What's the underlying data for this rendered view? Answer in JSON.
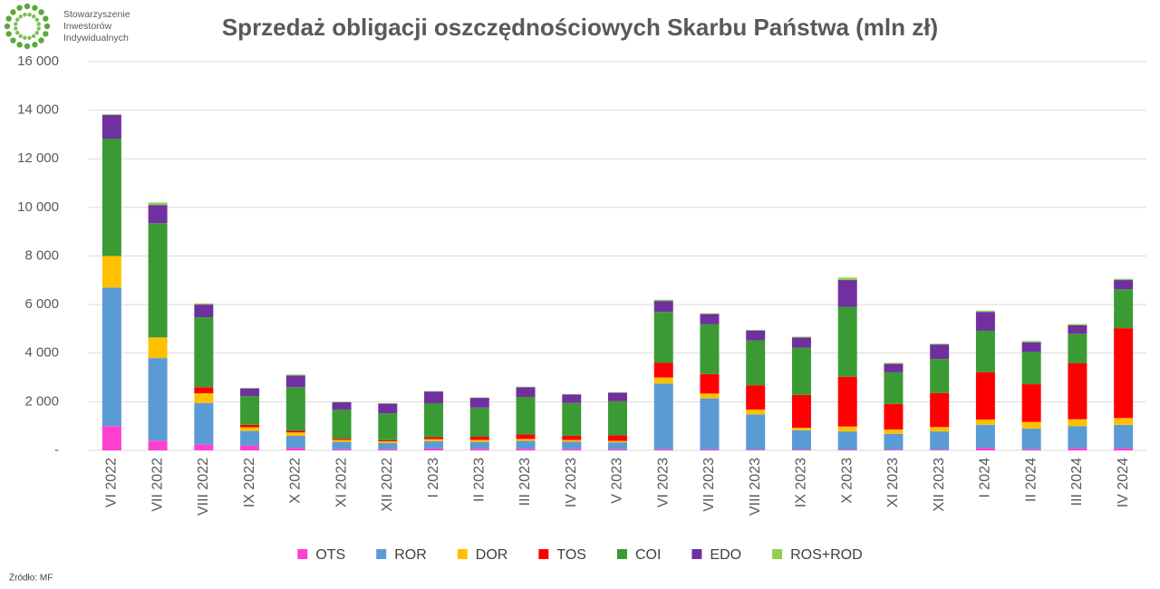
{
  "chart_data": {
    "type": "stacked_bar",
    "title": "Sprzedaż obligacji oszczędnościowych Skarbu Państwa (mln zł)",
    "logo_text": [
      "Stowarzyszenie",
      "Inwestorów",
      "Indywidualnych"
    ],
    "source": "Źródło: MF",
    "categories": [
      "VI 2022",
      "VII 2022",
      "VIII 2022",
      "IX 2022",
      "X 2022",
      "XI 2022",
      "XII 2022",
      "I 2023",
      "II 2023",
      "III 2023",
      "IV 2023",
      "V 2023",
      "VI 2023",
      "VII 2023",
      "VIII 2023",
      "IX 2023",
      "X 2023",
      "XI 2023",
      "XII 2023",
      "I 2024",
      "II 2024",
      "III 2024",
      "IV 2024"
    ],
    "series": [
      {
        "name": "OTS",
        "color": "#ff3fcf",
        "values": [
          1000,
          400,
          250,
          200,
          100,
          50,
          50,
          80,
          70,
          70,
          60,
          50,
          50,
          40,
          30,
          30,
          30,
          30,
          30,
          100,
          50,
          100,
          100
        ]
      },
      {
        "name": "ROR",
        "color": "#5b9bd5",
        "values": [
          5700,
          3400,
          1700,
          600,
          500,
          300,
          250,
          300,
          280,
          320,
          300,
          280,
          2700,
          2100,
          1450,
          800,
          750,
          650,
          750,
          950,
          850,
          900,
          950
        ]
      },
      {
        "name": "DOR",
        "color": "#ffc000",
        "values": [
          1300,
          850,
          400,
          150,
          140,
          80,
          70,
          80,
          80,
          80,
          70,
          60,
          250,
          200,
          200,
          100,
          200,
          180,
          180,
          220,
          270,
          280,
          280
        ]
      },
      {
        "name": "TOS",
        "color": "#ff0000",
        "values": [
          0,
          0,
          250,
          100,
          60,
          50,
          50,
          80,
          130,
          180,
          170,
          230,
          600,
          800,
          1000,
          1350,
          2050,
          1050,
          1400,
          1950,
          1550,
          2300,
          3700
        ]
      },
      {
        "name": "COI",
        "color": "#3a9b34",
        "values": [
          4830,
          4700,
          2880,
          1180,
          1800,
          1200,
          1100,
          1400,
          1200,
          1550,
          1350,
          1400,
          2100,
          2050,
          1850,
          1950,
          2880,
          1300,
          1400,
          1700,
          1330,
          1220,
          1600
        ]
      },
      {
        "name": "EDO",
        "color": "#7030a0",
        "values": [
          970,
          750,
          520,
          320,
          480,
          300,
          400,
          480,
          400,
          400,
          350,
          350,
          450,
          420,
          400,
          420,
          1100,
          350,
          600,
          780,
          400,
          350,
          380
        ]
      },
      {
        "name": "ROS+ROD",
        "color": "#92d050",
        "values": [
          30,
          100,
          50,
          20,
          40,
          20,
          20,
          20,
          20,
          20,
          20,
          20,
          50,
          30,
          30,
          30,
          100,
          40,
          30,
          50,
          50,
          50,
          50
        ]
      }
    ],
    "ylim": [
      0,
      16000
    ],
    "yticks": [
      {
        "value": 0,
        "label": "-"
      },
      {
        "value": 2000,
        "label": "2 000"
      },
      {
        "value": 4000,
        "label": "4 000"
      },
      {
        "value": 6000,
        "label": "6 000"
      },
      {
        "value": 8000,
        "label": "8 000"
      },
      {
        "value": 10000,
        "label": "10 000"
      },
      {
        "value": 12000,
        "label": "12 000"
      },
      {
        "value": 14000,
        "label": "14 000"
      },
      {
        "value": 16000,
        "label": "16 000"
      }
    ],
    "grid": true
  }
}
